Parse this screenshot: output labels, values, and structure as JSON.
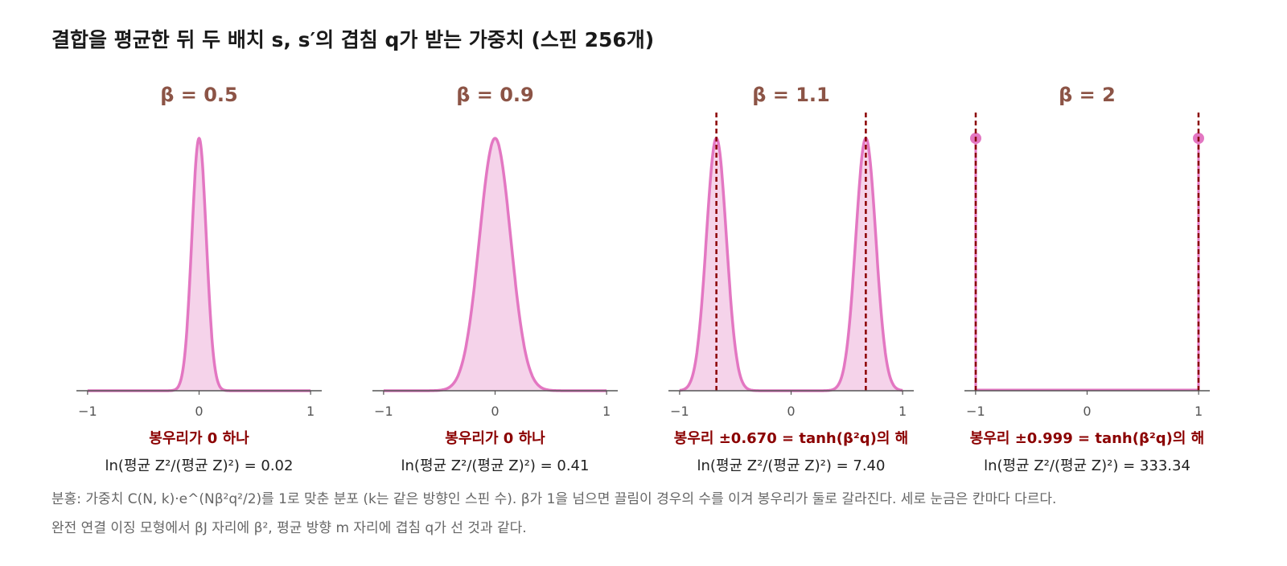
{
  "title": "결합을 평균한 뒤 두 배치 s, s′의 겹침 q가 받는 가중치 (스핀 256개)",
  "colors": {
    "curve": "#e377c2",
    "fill": "#f5d3ea",
    "marker_line": "#8b0000",
    "panel_title": "#8c5446",
    "annotation": "#8b0000",
    "axis": "#555555",
    "caption": "#666666"
  },
  "chart_data": [
    {
      "type": "area",
      "panel_title": "β = 0.5",
      "beta": 0.5,
      "xlim": [
        -1.1,
        1.1
      ],
      "xticks": [
        "−1",
        "0",
        "1"
      ],
      "peaks": [
        0.0
      ],
      "width": 0.065,
      "markers": [],
      "peak_label": "봉우리가 0 하나",
      "ln_ratio_label": "ln(평균 Z²/(평균 Z)²) = 0.02"
    },
    {
      "type": "area",
      "panel_title": "β = 0.9",
      "beta": 0.9,
      "xlim": [
        -1.1,
        1.1
      ],
      "xticks": [
        "−1",
        "0",
        "1"
      ],
      "peaks": [
        0.0
      ],
      "width": 0.14,
      "markers": [],
      "peak_label": "봉우리가 0 하나",
      "ln_ratio_label": "ln(평균 Z²/(평균 Z)²) = 0.41"
    },
    {
      "type": "area",
      "panel_title": "β = 1.1",
      "beta": 1.1,
      "xlim": [
        -1.1,
        1.1
      ],
      "xticks": [
        "−1",
        "0",
        "1"
      ],
      "peaks": [
        -0.67,
        0.67
      ],
      "width": 0.09,
      "markers": [
        -0.67,
        0.67
      ],
      "peak_label": "봉우리 ±0.670 = tanh(β²q)의 해",
      "ln_ratio_label": "ln(평균 Z²/(평균 Z)²) = 7.40"
    },
    {
      "type": "area",
      "panel_title": "β = 2",
      "beta": 2,
      "xlim": [
        -1.1,
        1.1
      ],
      "xticks": [
        "−1",
        "0",
        "1"
      ],
      "peaks": [
        -0.999,
        0.999
      ],
      "width": 0,
      "markers": [
        -0.999,
        0.999
      ],
      "spike": true,
      "peak_label": "봉우리 ±0.999 = tanh(β²q)의 해",
      "ln_ratio_label": "ln(평균 Z²/(평균 Z)²) = 333.34"
    }
  ],
  "caption": {
    "line1": "분홍: 가중치 C(N, k)·e^(Nβ²q²/2)를 1로 맞춘 분포 (k는 같은 방향인 스핀 수). β가 1을 넘으면 끌림이 경우의 수를 이겨 봉우리가 둘로 갈라진다. 세로 눈금은 칸마다 다르다.",
    "line2": "완전 연결 이징 모형에서 βJ 자리에 β², 평균 방향 m 자리에 겹침 q가 선 것과 같다."
  }
}
